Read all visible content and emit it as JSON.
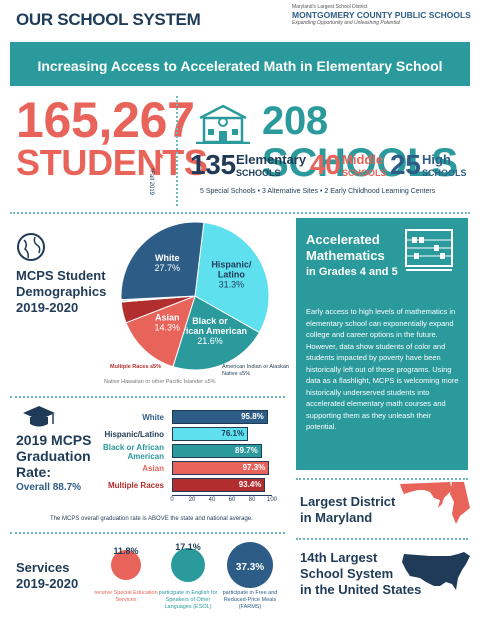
{
  "header": {
    "section_title": "OUR SCHOOL SYSTEM",
    "logo_tagline_top": "Maryland's Largest School District",
    "logo_name": "MONTGOMERY COUNTY PUBLIC SCHOOLS",
    "logo_tagline_bottom": "Expanding Opportunity and Unleashing Potential"
  },
  "banner": {
    "title": "Increasing Access to Accelerated Math in Elementary School"
  },
  "students": {
    "count": "165,267",
    "label": "STUDENTS",
    "asterisk": "*",
    "note": "*Fall 2019"
  },
  "schools": {
    "total": "208 SCHOOLS",
    "elementary_count": "135",
    "elementary_label": "Elementary",
    "elementary_sub": "SCHOOLS",
    "middle_count": "40",
    "middle_label": "Middle",
    "middle_sub": "SCHOOLS",
    "high_count": "25",
    "high_label": "High",
    "high_sub": "SCHOOLS",
    "other": "5 Special Schools  •  3 Alternative Sites  •  2 Early Childhood Learning Centers"
  },
  "demographics": {
    "title_line1": "MCPS Student",
    "title_line2": "Demographics",
    "title_line3": "2019-2020",
    "note_multiple": "Multiple Races ≤5%",
    "note_native": "American Indian or Alaskan Native ≤5%",
    "note_pacific": "Native Hawaiian or other Pacific Islander ≤5%"
  },
  "chart_data": [
    {
      "type": "pie",
      "title": "MCPS Student Demographics 2019-2020",
      "slices": [
        {
          "label": "Hispanic/ Latino",
          "value": 31.3,
          "display": "31.3%",
          "color": "#5ee0ef"
        },
        {
          "label": "Black or African American",
          "value": 21.6,
          "display": "21.6%",
          "color": "#2a9a9c"
        },
        {
          "label": "Asian",
          "value": 14.3,
          "display": "14.3%",
          "color": "#e8635a"
        },
        {
          "label": "Multiple Races",
          "value": 4.6,
          "display": "≤5%",
          "color": "#b22d2d"
        },
        {
          "label": "American Indian or Alaskan Native",
          "value": 0.2,
          "display": "≤5%",
          "color": "#2b2b2b"
        },
        {
          "label": "Native Hawaiian or other Pacific Islander",
          "value": 0.3,
          "display": "≤5%",
          "color": "#9aa0a6"
        },
        {
          "label": "White",
          "value": 27.7,
          "display": "27.7%",
          "color": "#2d5d86"
        }
      ]
    },
    {
      "type": "bar",
      "title": "2019 MCPS Graduation Rate",
      "categories": [
        "White",
        "Hispanic/Latino",
        "Black or African American",
        "Asian",
        "Multiple Races"
      ],
      "values": [
        95.8,
        76.1,
        89.7,
        97.3,
        93.4
      ],
      "display": [
        "95.8%",
        "76.1%",
        "89.7%",
        "97.3%",
        "93.4%"
      ],
      "colors": [
        "#2d5d86",
        "#5ee0ef",
        "#2a9a9c",
        "#e8635a",
        "#b22d2d"
      ],
      "label_colors": [
        "#2d5d86",
        "#1f3b57",
        "#2a9a9c",
        "#e8635a",
        "#b22d2d"
      ],
      "xticks": [
        "0",
        "20",
        "40",
        "60",
        "80",
        "100"
      ],
      "xlim": [
        0,
        100
      ]
    }
  ],
  "graduation": {
    "title_line1": "2019 MCPS",
    "title_line2": "Graduation",
    "title_line3": "Rate:",
    "overall": "Overall 88.7%",
    "note": "The MCPS overall graduation rate is ABOVE the state and national average."
  },
  "services": {
    "title_line1": "Services",
    "title_line2": "2019-2020",
    "items": [
      {
        "value": "11.8%",
        "desc": "receive Special Education Services",
        "color": "#e8635a"
      },
      {
        "value": "17.1%",
        "desc": "participate in English for Speakers of Other Languages (ESOL)",
        "color": "#2a9a9c"
      },
      {
        "value": "37.3%",
        "desc": "participate in Free and Reduced-Price Meals (FARMS)",
        "color": "#2d5d86"
      }
    ]
  },
  "accelerated": {
    "title_line1": "Accelerated",
    "title_line2": "Mathematics",
    "title_line3": "in Grades 4 and 5",
    "body": "Early access to high levels of mathematics in elementary school can exponentially expand college and career options in the future. However, data show students of color and students impacted by poverty have been historically left out of these programs. Using data as a flashlight, MCPS is welcoming more historically underserved students into accelerated elementary math courses and supporting them as they unleash their potential."
  },
  "largest": {
    "line1": "Largest District",
    "line2": "in Maryland"
  },
  "fourteenth": {
    "line1": "14th Largest",
    "line2": "School System",
    "line3": "in the United States"
  },
  "icons": [
    "globe-icon",
    "graduation-cap-icon",
    "school-building-icon",
    "abacus-icon",
    "maryland-map-icon",
    "usa-map-icon"
  ]
}
